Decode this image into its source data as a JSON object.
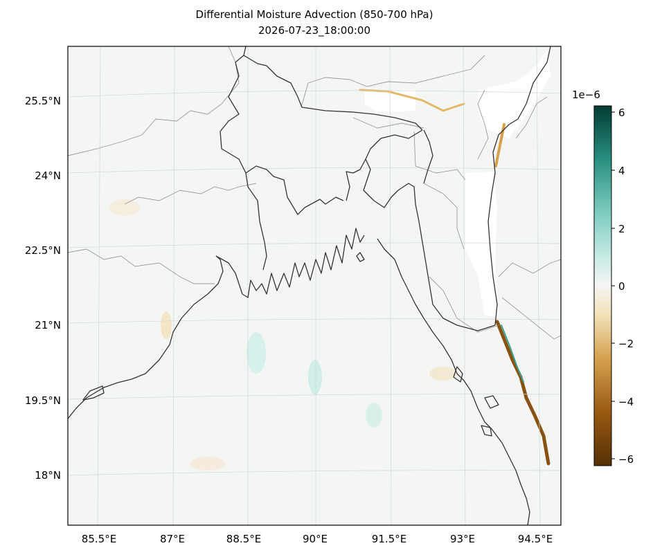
{
  "title": "Differential Moisture Advection (850-700 hPa)",
  "subtitle": "2026-07-23_18:00:00",
  "map": {
    "projection": "lambert-conformal",
    "lon_ticks": [
      "85.5°E",
      "87°E",
      "88.5°E",
      "90°E",
      "91.5°E",
      "93°E",
      "94.5°E"
    ],
    "lat_ticks": [
      "25.5°N",
      "24°N",
      "22.5°N",
      "21°N",
      "19.5°N",
      "18°N"
    ],
    "gridlines": true,
    "field": "differential moisture advection",
    "colormap": "BrBG",
    "colors": {
      "neg_strong": "#5b3307",
      "neg_mid": "#c78a2a",
      "neg_light": "#f3e2b6",
      "neutral": "#f5f5f2",
      "pos_light": "#c6ece4",
      "pos_mid": "#4ab3a4",
      "pos_strong": "#014a3e",
      "coast": "#333333",
      "border": "#999999",
      "masked": "#ffffff"
    }
  },
  "colorbar": {
    "exponent_label": "1e−6",
    "ticks": [
      "6",
      "4",
      "2",
      "0",
      "−2",
      "−4",
      "−6"
    ],
    "range": [
      -6.3,
      6.3
    ]
  }
}
